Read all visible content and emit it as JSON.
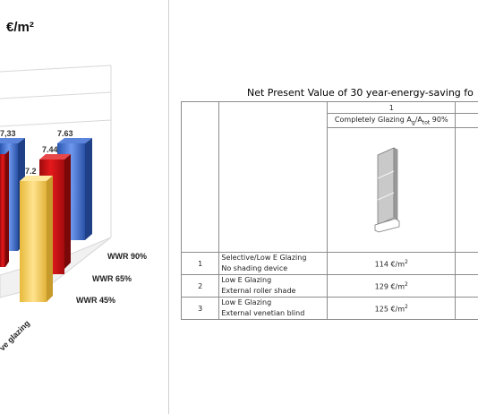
{
  "chart_data": {
    "type": "bar",
    "title": "€/m²",
    "series_rows": [
      "WWR 90%",
      "WWR 65%",
      "WWR 45%"
    ],
    "series_colors": [
      "#3d6fd1",
      "#c80f12",
      "#f6d05a"
    ],
    "category_label": "ve glazing",
    "bars": [
      {
        "series": "WWR 90%",
        "value": 7.33,
        "label": "7,33"
      },
      {
        "series": "WWR 90%",
        "value": 7.63,
        "label": "7.63"
      },
      {
        "series": "WWR 65%",
        "value": 7.44,
        "label": "7.44"
      },
      {
        "series": "WWR 45%",
        "value": 7.2,
        "label": "7.2"
      }
    ]
  },
  "table": {
    "title": "Net Present Value of 30 year-energy-saving fo",
    "col_number": "1",
    "col_header": {
      "main": "Completely Glazing A",
      "sub1": "g",
      "mid": "/A",
      "sub2": "tot",
      "tail": " 90%"
    },
    "rows": [
      {
        "num": "1",
        "line1": "Selective/Low E Glazing",
        "line2": "No shading device",
        "value": "114 €/m",
        "sup": "2"
      },
      {
        "num": "2",
        "line1": "Low E Glazing",
        "line2": "External roller shade",
        "value": "129 €/m",
        "sup": "2"
      },
      {
        "num": "3",
        "line1": "Low E Glazing",
        "line2": "External venetian blind",
        "value": "125 €/m",
        "sup": "2"
      }
    ]
  }
}
